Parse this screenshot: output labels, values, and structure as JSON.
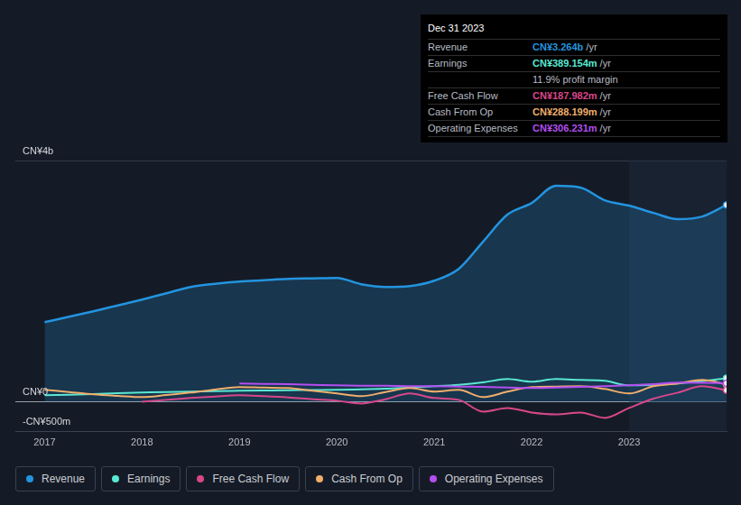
{
  "chart_data": {
    "type": "line",
    "x": [
      2017,
      2017.25,
      2017.5,
      2017.75,
      2018,
      2018.25,
      2018.5,
      2018.75,
      2019,
      2019.25,
      2019.5,
      2019.75,
      2020,
      2020.25,
      2020.5,
      2020.75,
      2021,
      2021.25,
      2021.5,
      2021.75,
      2022,
      2022.25,
      2022.5,
      2022.75,
      2023,
      2023.25,
      2023.5,
      2023.75,
      2024
    ],
    "xlim": [
      2016.7,
      2024
    ],
    "xticks": [
      2017,
      2018,
      2019,
      2020,
      2021,
      2022,
      2023
    ],
    "ylim": [
      -500,
      4000
    ],
    "yticks": [
      {
        "value": -500,
        "label": "-CN¥500m"
      },
      {
        "value": 0,
        "label": "CN¥0"
      },
      {
        "value": 4000,
        "label": "CN¥4b"
      }
    ],
    "grid": true,
    "legend": "bottom",
    "shaded_from": 2023,
    "series": [
      {
        "name": "Revenue",
        "color": "#2394df",
        "values": [
          1318,
          1408,
          1498,
          1595,
          1693,
          1798,
          1903,
          1955,
          1993,
          2015,
          2037,
          2045,
          2052,
          1948,
          1903,
          1918,
          2007,
          2202,
          2652,
          3101,
          3296,
          3580,
          3551,
          3341,
          3251,
          3131,
          3026,
          3071,
          3264
        ]
      },
      {
        "name": "Earnings",
        "color": "#5ae8d2",
        "values": [
          105,
          115,
          125,
          140,
          150,
          160,
          165,
          175,
          180,
          185,
          190,
          192,
          195,
          205,
          215,
          235,
          255,
          280,
          320,
          375,
          330,
          375,
          360,
          345,
          270,
          280,
          300,
          340,
          389
        ]
      },
      {
        "name": "Free Cash Flow",
        "color": "#d8478a",
        "values": [
          null,
          null,
          null,
          null,
          0,
          30,
          60,
          85,
          105,
          90,
          70,
          40,
          15,
          -30,
          40,
          135,
          60,
          30,
          -165,
          -105,
          -180,
          -210,
          -180,
          -270,
          -105,
          50,
          150,
          255,
          188
        ]
      },
      {
        "name": "Cash From Op",
        "color": "#f0ae6c",
        "values": [
          195,
          160,
          120,
          95,
          75,
          110,
          150,
          200,
          240,
          232,
          225,
          180,
          135,
          90,
          160,
          225,
          165,
          195,
          75,
          165,
          240,
          250,
          255,
          210,
          135,
          255,
          300,
          360,
          288
        ]
      },
      {
        "name": "Operating Expenses",
        "color": "#b44ef0",
        "values": [
          null,
          null,
          null,
          null,
          null,
          null,
          null,
          null,
          300,
          295,
          290,
          280,
          270,
          265,
          262,
          258,
          255,
          250,
          245,
          235,
          225,
          235,
          245,
          255,
          270,
          290,
          315,
          312,
          306
        ]
      }
    ],
    "info_box": {
      "title": "Dec 31 2023",
      "rows": [
        {
          "label": "Revenue",
          "text": "CN¥3.264b /yr"
        },
        {
          "label": "Earnings",
          "text": "CN¥389.154m /yr"
        },
        {
          "text": "11.9% profit margin"
        },
        {
          "label": "Free Cash Flow",
          "text": "CN¥187.982m /yr"
        },
        {
          "label": "Cash From Op",
          "text": "CN¥288.199m /yr"
        },
        {
          "label": "Operating Expenses",
          "text": "CN¥306.231m /yr"
        }
      ]
    }
  }
}
